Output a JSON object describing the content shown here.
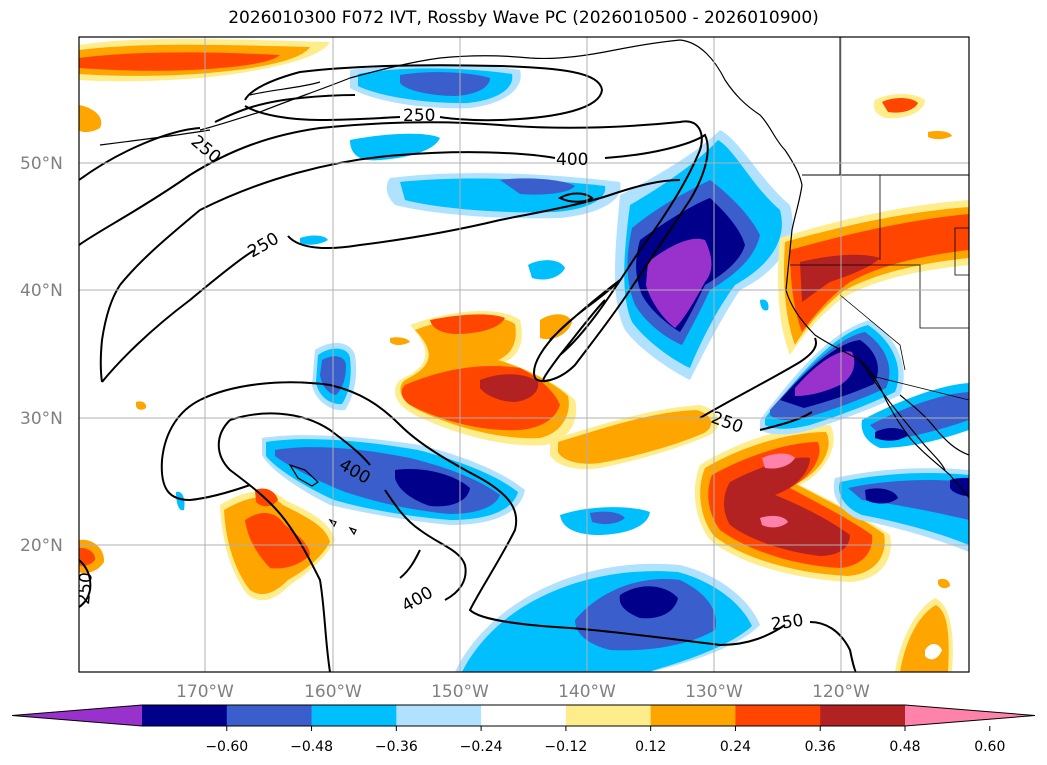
{
  "title": "2026010300 F072 IVT, Rossby Wave PC (2026010500 - 2026010900)",
  "lat_labels": [
    "50°N",
    "40°N",
    "30°N",
    "20°N"
  ],
  "lon_labels": [
    "170°W",
    "160°W",
    "150°W",
    "140°W",
    "130°W",
    "120°W"
  ],
  "colorbar": {
    "colors": [
      "#9932cc",
      "#00008b",
      "#3a5fcd",
      "#00bfff",
      "#b0e2ff",
      "#ffffff",
      "#ffec8b",
      "#ffa500",
      "#ff4500",
      "#b22222",
      "#ff82ab"
    ],
    "tick_labels": [
      "−0.60",
      "−0.48",
      "−0.36",
      "−0.24",
      "−0.12",
      "0.12",
      "0.24",
      "0.36",
      "0.48",
      "0.60"
    ]
  },
  "contour_labels": [
    "250",
    "250",
    "250",
    "250",
    "250",
    "250",
    "400",
    "400",
    "400"
  ],
  "colors": {
    "coast": "#000000",
    "grid": "#b0b0b0",
    "contour": "#000000"
  }
}
